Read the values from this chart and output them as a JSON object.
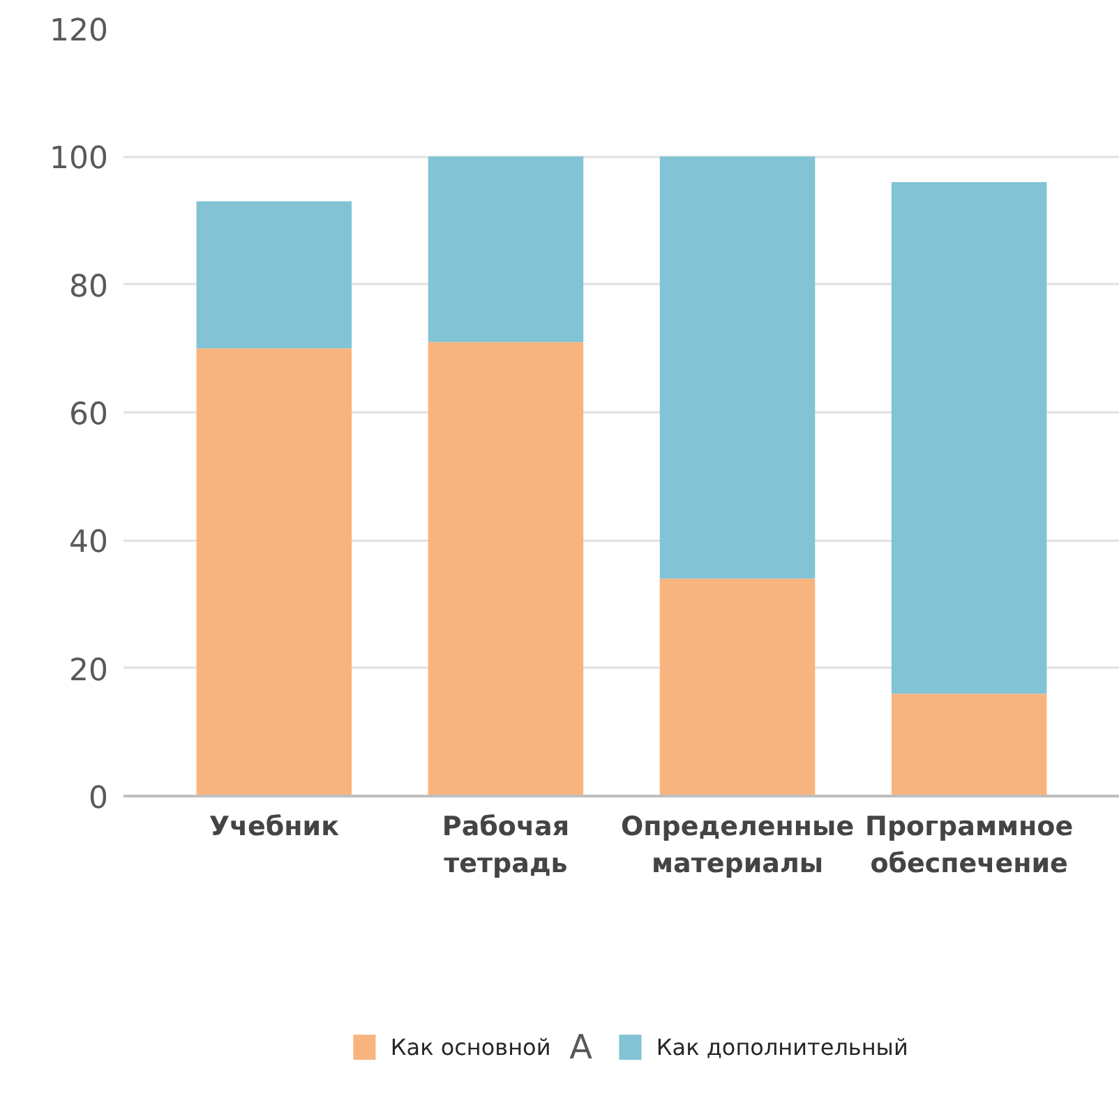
{
  "chart_data": {
    "type": "bar",
    "stacked": true,
    "categories": [
      "Учебник",
      "Рабочая тетрадь",
      "Определенные материалы",
      "Программное обеспечение"
    ],
    "series": [
      {
        "name": "Как основной",
        "color": "#f8b47e",
        "values": [
          70,
          71,
          34,
          16
        ]
      },
      {
        "name": "Как дополнительный",
        "color": "#82c3d5",
        "values": [
          23,
          29,
          66,
          80
        ]
      }
    ],
    "ylim": [
      0,
      120
    ],
    "yticks": [
      0,
      20,
      40,
      60,
      80,
      100,
      120
    ],
    "grid": "y",
    "legend": "bottom",
    "annotations": [
      "А"
    ]
  }
}
